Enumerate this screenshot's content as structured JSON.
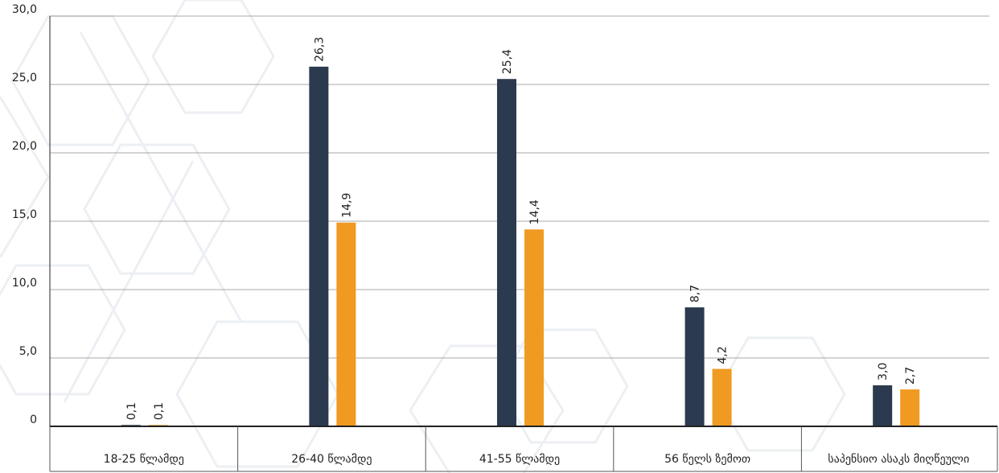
{
  "chart_data": {
    "type": "bar",
    "categories": [
      "18-25 წლამდე",
      "26-40 წლამდე",
      "41-55 წლამდე",
      "56 წელს ზემოთ",
      "საპენსიო ასაკს მიღწეული"
    ],
    "series": [
      {
        "values": [
          0.1,
          26.3,
          25.4,
          8.7,
          3.0
        ],
        "labels": [
          "0,1",
          "26,3",
          "25,4",
          "8,7",
          "3,0"
        ],
        "color": "#2b3a4e"
      },
      {
        "values": [
          0.1,
          14.9,
          14.4,
          4.2,
          2.7
        ],
        "labels": [
          "0,1",
          "14,9",
          "14,4",
          "4,2",
          "2,7"
        ],
        "color": "#f09a22"
      }
    ],
    "ylim": [
      0,
      30
    ],
    "y_ticks": [
      0,
      5,
      10,
      15,
      20,
      25,
      30
    ],
    "y_tick_labels": [
      "0",
      "5,0",
      "10,0",
      "15,0",
      "20,0",
      "25,0",
      "30,0"
    ],
    "grid": true,
    "legend": "none",
    "title": "",
    "xlabel": "",
    "ylabel": ""
  }
}
